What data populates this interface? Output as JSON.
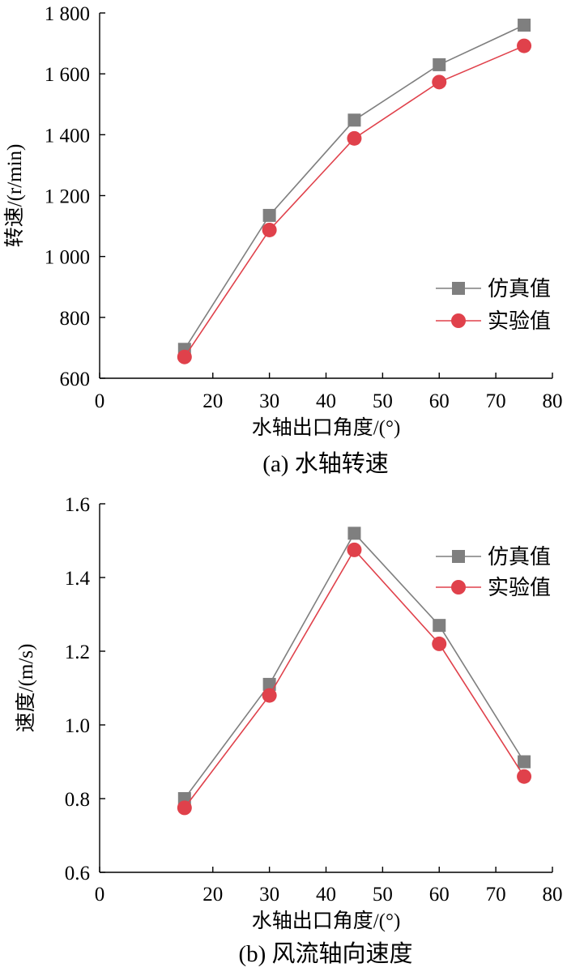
{
  "chart_data": [
    {
      "type": "line",
      "caption": "(a) 水轴转速",
      "xlabel": "水轴出口角度/(°)",
      "ylabel": "转速/(r/min)",
      "xlim": [
        0,
        80
      ],
      "ylim": [
        600,
        1800
      ],
      "xticks": [
        0,
        20,
        30,
        40,
        50,
        60,
        70,
        80
      ],
      "xtick_labels": [
        "0",
        "20",
        "30",
        "40",
        "50",
        "60",
        "70",
        "80"
      ],
      "yticks": [
        600,
        800,
        1000,
        1200,
        1400,
        1600,
        1800
      ],
      "ytick_labels": [
        "600",
        "800",
        "1 000",
        "1 200",
        "1 400",
        "1 600",
        "1 800"
      ],
      "grid": false,
      "legend_position": "middle-right",
      "x": [
        15,
        30,
        45,
        60,
        75
      ],
      "series": [
        {
          "name": "仿真值",
          "values": [
            695,
            1135,
            1448,
            1630,
            1760
          ],
          "color": "#7f7f7f",
          "marker": "square"
        },
        {
          "name": "实验值",
          "values": [
            670,
            1087,
            1388,
            1573,
            1692
          ],
          "color": "#e0414b",
          "marker": "circle"
        }
      ]
    },
    {
      "type": "line",
      "caption": "(b) 风流轴向速度",
      "xlabel": "水轴出口角度/(°)",
      "ylabel": "速度/(m/s)",
      "xlim": [
        0,
        80
      ],
      "ylim": [
        0.6,
        1.6
      ],
      "xticks": [
        0,
        20,
        30,
        40,
        50,
        60,
        70,
        80
      ],
      "xtick_labels": [
        "0",
        "20",
        "30",
        "40",
        "50",
        "60",
        "70",
        "80"
      ],
      "yticks": [
        0.6,
        0.8,
        1.0,
        1.2,
        1.4,
        1.6
      ],
      "ytick_labels": [
        "0.6",
        "0.8",
        "1.0",
        "1.2",
        "1.4",
        "1.6"
      ],
      "grid": false,
      "legend_position": "top-right",
      "x": [
        15,
        30,
        45,
        60,
        75
      ],
      "series": [
        {
          "name": "仿真值",
          "values": [
            0.8,
            1.11,
            1.52,
            1.27,
            0.9
          ],
          "color": "#7f7f7f",
          "marker": "square"
        },
        {
          "name": "实验值",
          "values": [
            0.775,
            1.08,
            1.475,
            1.22,
            0.86
          ],
          "color": "#e0414b",
          "marker": "circle"
        }
      ]
    }
  ]
}
